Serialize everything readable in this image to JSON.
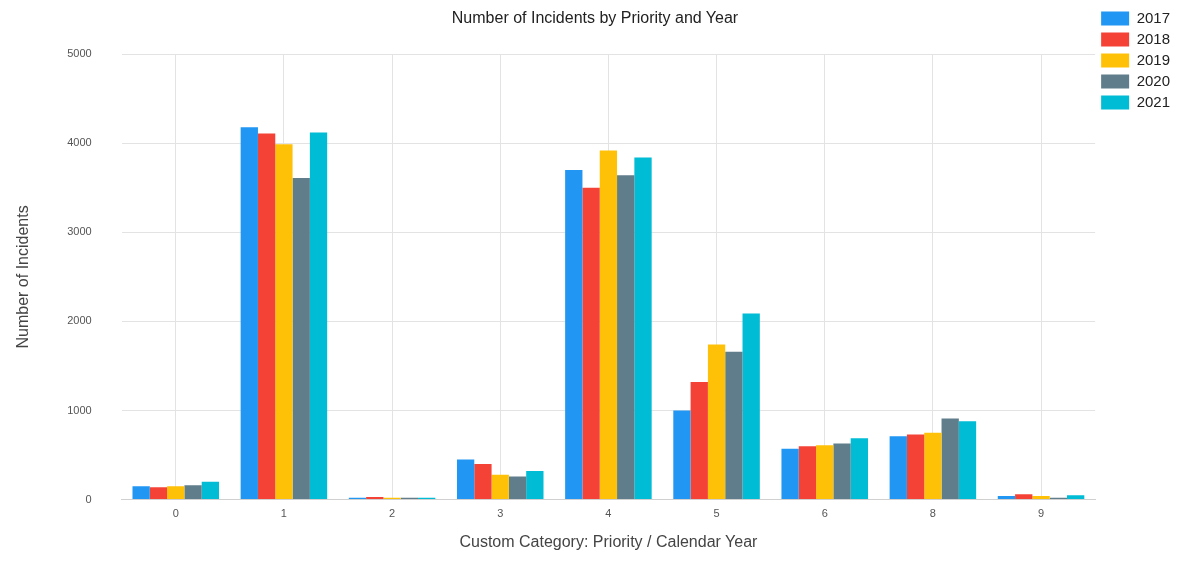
{
  "chart_data": {
    "type": "bar",
    "title": "Number of Incidents by Priority and Year",
    "xlabel": "Custom Category: Priority / Calendar Year",
    "ylabel": "Number of Incidents",
    "categories": [
      "0",
      "1",
      "2",
      "3",
      "4",
      "5",
      "6",
      "8",
      "9"
    ],
    "series": [
      {
        "name": "2017",
        "color": "#2196f3",
        "values": [
          150,
          4180,
          20,
          450,
          3700,
          1000,
          570,
          710,
          40
        ]
      },
      {
        "name": "2018",
        "color": "#f44336",
        "values": [
          140,
          4110,
          30,
          400,
          3500,
          1320,
          600,
          730,
          60
        ]
      },
      {
        "name": "2019",
        "color": "#ffc107",
        "values": [
          150,
          3990,
          20,
          280,
          3920,
          1740,
          610,
          750,
          40
        ]
      },
      {
        "name": "2020",
        "color": "#607d8b",
        "values": [
          160,
          3610,
          20,
          260,
          3640,
          1660,
          630,
          910,
          20
        ]
      },
      {
        "name": "2021",
        "color": "#00bcd4",
        "values": [
          200,
          4120,
          20,
          320,
          3840,
          2090,
          690,
          880,
          50
        ]
      }
    ],
    "ylim": [
      0,
      5000
    ],
    "yticks": [
      0,
      1000,
      2000,
      3000,
      4000,
      5000
    ],
    "grid": true,
    "legend": "top right"
  }
}
